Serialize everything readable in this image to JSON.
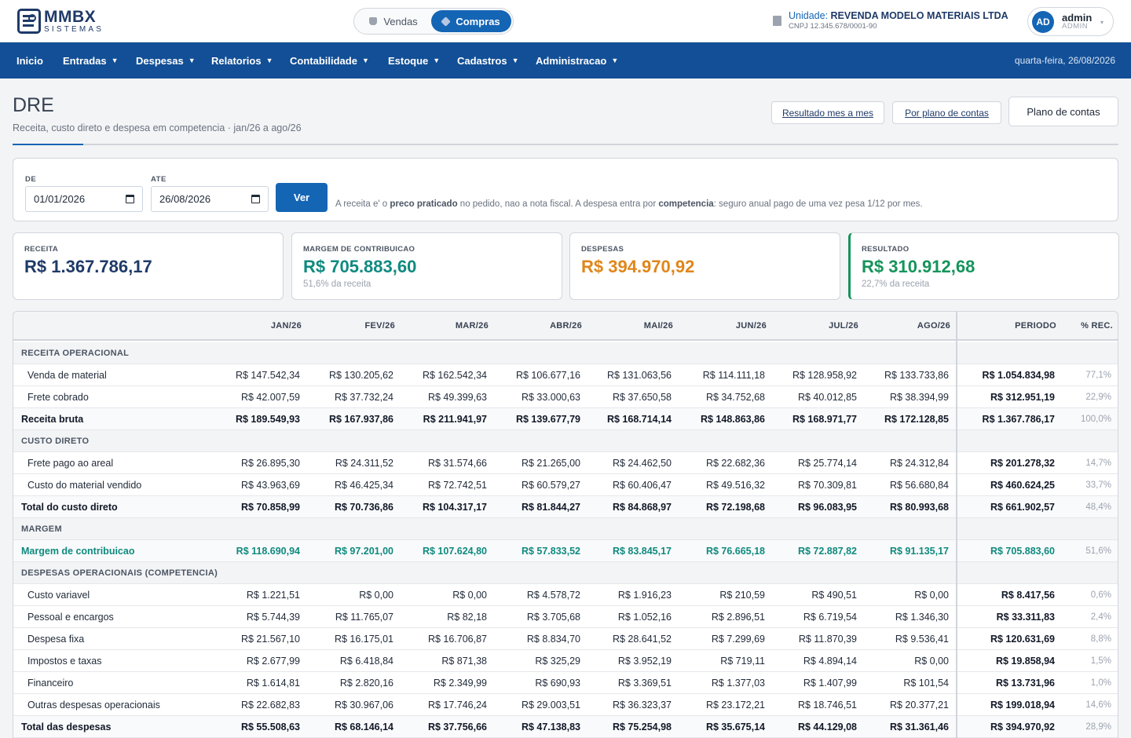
{
  "header": {
    "logo_title": "MMBX",
    "logo_sub": "SISTEMAS",
    "toggle": {
      "vendas": "Vendas",
      "compras": "Compras",
      "active": "Compras"
    },
    "unit_label": "Unidade:",
    "unit_name": "REVENDA MODELO MATERIAIS LTDA",
    "unit_cnpj": "CNPJ 12.345.678/0001-90",
    "user_initials": "AD",
    "user_name": "admin",
    "user_role": "ADMIN"
  },
  "nav": {
    "items": [
      "Inicio",
      "Entradas",
      "Despesas",
      "Relatorios",
      "Contabilidade",
      "Estoque",
      "Cadastros",
      "Administracao"
    ],
    "date": "quarta-feira, 26/08/2026"
  },
  "page": {
    "title": "DRE",
    "subtitle": "Receita, custo direto e despesa em competencia · jan/26 a ago/26",
    "btn_mes": "Resultado mes a mes",
    "btn_plano_por": "Por plano de contas",
    "btn_plano": "Plano de contas"
  },
  "filter": {
    "de_label": "DE",
    "de_value": "01/01/2026",
    "ate_label": "ATE",
    "ate_value": "26/08/2026",
    "ver": "Ver",
    "note_a": "A receita e' o ",
    "note_b": "preco praticado",
    "note_c": " no pedido, nao a nota fiscal. A despesa entra por ",
    "note_d": "competencia",
    "note_e": ": seguro anual pago de uma vez pesa 1/12 por mes."
  },
  "kpis": {
    "receita": {
      "label": "RECEITA",
      "value": "R$ 1.367.786,17",
      "sub": ""
    },
    "margem": {
      "label": "MARGEM DE CONTRIBUICAO",
      "value": "R$ 705.883,60",
      "sub": "51,6% da receita"
    },
    "despesas": {
      "label": "DESPESAS",
      "value": "R$ 394.970,92",
      "sub": ""
    },
    "resultado": {
      "label": "RESULTADO",
      "value": "R$ 310.912,68",
      "sub": "22,7% da receita"
    },
    "colors": {
      "receita": "#1f3a68",
      "margem": "#0f8a7f",
      "despesas": "#e0861a",
      "resultado": "#15945b"
    }
  },
  "table": {
    "headers": [
      "JAN/26",
      "FEV/26",
      "MAR/26",
      "ABR/26",
      "MAI/26",
      "JUN/26",
      "JUL/26",
      "AGO/26",
      "PERIODO",
      "% REC."
    ],
    "rows": [
      {
        "type": "section",
        "label": "RECEITA OPERACIONAL"
      },
      {
        "type": "item",
        "label": "Venda de material",
        "values": [
          "R$ 147.542,34",
          "R$ 130.205,62",
          "R$ 162.542,34",
          "R$ 106.677,16",
          "R$ 131.063,56",
          "R$ 114.111,18",
          "R$ 128.958,92",
          "R$ 133.733,86"
        ],
        "period": "R$ 1.054.834,98",
        "pct": "77,1%"
      },
      {
        "type": "item",
        "label": "Frete cobrado",
        "values": [
          "R$ 42.007,59",
          "R$ 37.732,24",
          "R$ 49.399,63",
          "R$ 33.000,63",
          "R$ 37.650,58",
          "R$ 34.752,68",
          "R$ 40.012,85",
          "R$ 38.394,99"
        ],
        "period": "R$ 312.951,19",
        "pct": "22,9%"
      },
      {
        "type": "total",
        "label": "Receita bruta",
        "values": [
          "R$ 189.549,93",
          "R$ 167.937,86",
          "R$ 211.941,97",
          "R$ 139.677,79",
          "R$ 168.714,14",
          "R$ 148.863,86",
          "R$ 168.971,77",
          "R$ 172.128,85"
        ],
        "period": "R$ 1.367.786,17",
        "pct": "100,0%"
      },
      {
        "type": "section",
        "label": "CUSTO DIRETO"
      },
      {
        "type": "item",
        "label": "Frete pago ao areal",
        "values": [
          "R$ 26.895,30",
          "R$ 24.311,52",
          "R$ 31.574,66",
          "R$ 21.265,00",
          "R$ 24.462,50",
          "R$ 22.682,36",
          "R$ 25.774,14",
          "R$ 24.312,84"
        ],
        "period": "R$ 201.278,32",
        "pct": "14,7%"
      },
      {
        "type": "item",
        "label": "Custo do material vendido",
        "values": [
          "R$ 43.963,69",
          "R$ 46.425,34",
          "R$ 72.742,51",
          "R$ 60.579,27",
          "R$ 60.406,47",
          "R$ 49.516,32",
          "R$ 70.309,81",
          "R$ 56.680,84"
        ],
        "period": "R$ 460.624,25",
        "pct": "33,7%"
      },
      {
        "type": "total",
        "label": "Total do custo direto",
        "values": [
          "R$ 70.858,99",
          "R$ 70.736,86",
          "R$ 104.317,17",
          "R$ 81.844,27",
          "R$ 84.868,97",
          "R$ 72.198,68",
          "R$ 96.083,95",
          "R$ 80.993,68"
        ],
        "period": "R$ 661.902,57",
        "pct": "48,4%"
      },
      {
        "type": "section",
        "label": "MARGEM"
      },
      {
        "type": "margin",
        "label": "Margem de contribuicao",
        "values": [
          "R$ 118.690,94",
          "R$ 97.201,00",
          "R$ 107.624,80",
          "R$ 57.833,52",
          "R$ 83.845,17",
          "R$ 76.665,18",
          "R$ 72.887,82",
          "R$ 91.135,17"
        ],
        "period": "R$ 705.883,60",
        "pct": "51,6%"
      },
      {
        "type": "section",
        "label": "DESPESAS OPERACIONAIS (COMPETENCIA)"
      },
      {
        "type": "item",
        "label": "Custo variavel",
        "values": [
          "R$ 1.221,51",
          "R$ 0,00",
          "R$ 0,00",
          "R$ 4.578,72",
          "R$ 1.916,23",
          "R$ 210,59",
          "R$ 490,51",
          "R$ 0,00"
        ],
        "period": "R$ 8.417,56",
        "pct": "0,6%"
      },
      {
        "type": "item",
        "label": "Pessoal e encargos",
        "values": [
          "R$ 5.744,39",
          "R$ 11.765,07",
          "R$ 82,18",
          "R$ 3.705,68",
          "R$ 1.052,16",
          "R$ 2.896,51",
          "R$ 6.719,54",
          "R$ 1.346,30"
        ],
        "period": "R$ 33.311,83",
        "pct": "2,4%"
      },
      {
        "type": "item",
        "label": "Despesa fixa",
        "values": [
          "R$ 21.567,10",
          "R$ 16.175,01",
          "R$ 16.706,87",
          "R$ 8.834,70",
          "R$ 28.641,52",
          "R$ 7.299,69",
          "R$ 11.870,39",
          "R$ 9.536,41"
        ],
        "period": "R$ 120.631,69",
        "pct": "8,8%"
      },
      {
        "type": "item",
        "label": "Impostos e taxas",
        "values": [
          "R$ 2.677,99",
          "R$ 6.418,84",
          "R$ 871,38",
          "R$ 325,29",
          "R$ 3.952,19",
          "R$ 719,11",
          "R$ 4.894,14",
          "R$ 0,00"
        ],
        "period": "R$ 19.858,94",
        "pct": "1,5%"
      },
      {
        "type": "item",
        "label": "Financeiro",
        "values": [
          "R$ 1.614,81",
          "R$ 2.820,16",
          "R$ 2.349,99",
          "R$ 690,93",
          "R$ 3.369,51",
          "R$ 1.377,03",
          "R$ 1.407,99",
          "R$ 101,54"
        ],
        "period": "R$ 13.731,96",
        "pct": "1,0%"
      },
      {
        "type": "item",
        "label": "Outras despesas operacionais",
        "values": [
          "R$ 22.682,83",
          "R$ 30.967,06",
          "R$ 17.746,24",
          "R$ 29.003,51",
          "R$ 36.323,37",
          "R$ 23.172,21",
          "R$ 18.746,51",
          "R$ 20.377,21"
        ],
        "period": "R$ 199.018,94",
        "pct": "14,6%"
      },
      {
        "type": "total",
        "label": "Total das despesas",
        "values": [
          "R$ 55.508,63",
          "R$ 68.146,14",
          "R$ 37.756,66",
          "R$ 47.138,83",
          "R$ 75.254,98",
          "R$ 35.675,14",
          "R$ 44.129,08",
          "R$ 31.361,46"
        ],
        "period": "R$ 394.970,92",
        "pct": "28,9%"
      }
    ]
  }
}
